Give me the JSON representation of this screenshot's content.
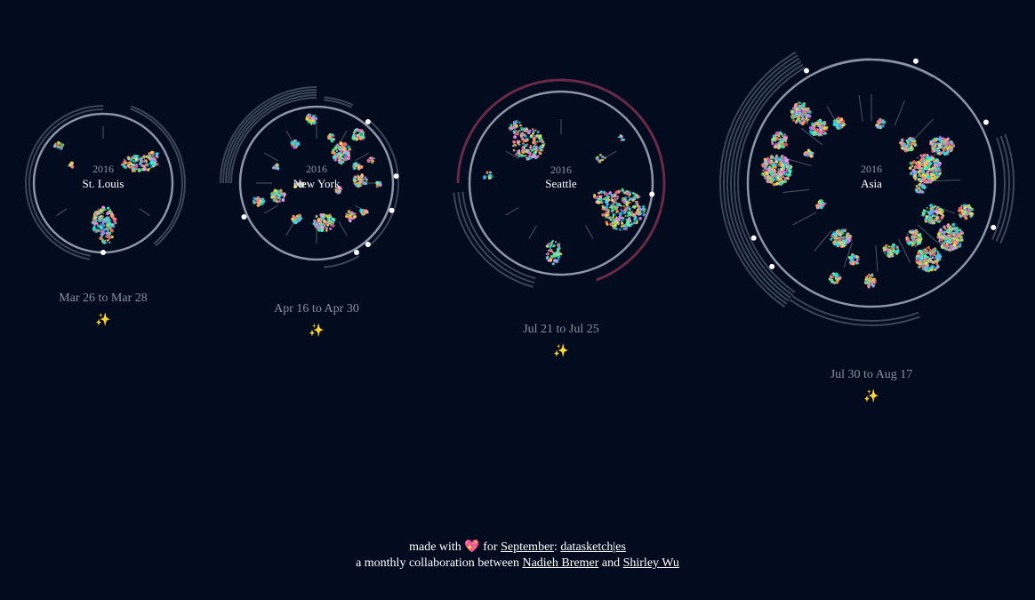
{
  "trips": [
    {
      "id": "stlouis",
      "year": "2016",
      "city": "St. Louis",
      "dates": "Mar 26 to Mar 28",
      "sparkle": "✨"
    },
    {
      "id": "newyork",
      "year": "2016",
      "city": "New York",
      "dates": "Apr 16 to Apr 30",
      "sparkle": "✨"
    },
    {
      "id": "seattle",
      "year": "2016",
      "city": "Seattle",
      "dates": "Jul 21 to Jul 25",
      "sparkle": "✨"
    },
    {
      "id": "asia",
      "year": "2016",
      "city": "Asia",
      "dates": "Jul 30 to Aug 17",
      "sparkle": "✨"
    }
  ],
  "footer": {
    "made_with": "made with",
    "heart": "💖",
    "for": "for",
    "month_link": "September",
    "colon": ":",
    "project_link": "datasketch|es",
    "collab_text": "a monthly collaboration between",
    "author1": "Nadieh Bremer",
    "and": "and",
    "author2": "Shirley Wu"
  },
  "colors": {
    "background": "#030c1f",
    "ring": "#8c96a8",
    "arc": "#3b4659",
    "seattle_arc": "#6a2a45",
    "sparkle": "#d4b548"
  }
}
